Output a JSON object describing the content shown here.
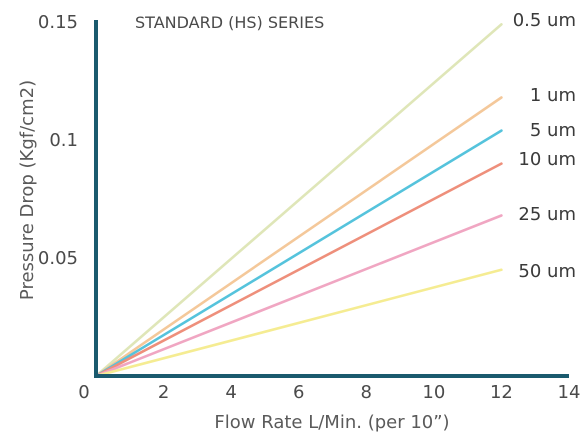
{
  "chart_data": {
    "type": "line",
    "title": "STANDARD (HS) SERIES",
    "xlabel": "Flow Rate L/Min. (per 10”)",
    "ylabel": "Pressure Drop (Kgf/cm2)",
    "xlim": [
      0,
      14
    ],
    "ylim": [
      0,
      0.15
    ],
    "x_ticks": [
      "0",
      "2",
      "4",
      "6",
      "8",
      "10",
      "12",
      "14"
    ],
    "y_ticks": [
      "0.05",
      "0.1",
      "0.15"
    ],
    "grid": false,
    "axis_color": "#1a5a6e",
    "series": [
      {
        "name": "0.5 um",
        "color": "#dfe6b8",
        "x": [
          0,
          12
        ],
        "y": [
          0,
          0.149
        ]
      },
      {
        "name": "1 um",
        "color": "#f4c89a",
        "x": [
          0,
          12
        ],
        "y": [
          0,
          0.118
        ]
      },
      {
        "name": "5 um",
        "color": "#55c3dc",
        "x": [
          0,
          12
        ],
        "y": [
          0,
          0.104
        ]
      },
      {
        "name": "10 um",
        "color": "#ee8f7b",
        "x": [
          0,
          12
        ],
        "y": [
          0,
          0.09
        ]
      },
      {
        "name": "25 um",
        "color": "#f0a6c2",
        "x": [
          0,
          12
        ],
        "y": [
          0,
          0.068
        ]
      },
      {
        "name": "50 um",
        "color": "#f5ec92",
        "x": [
          0,
          12
        ],
        "y": [
          0,
          0.045
        ]
      }
    ]
  }
}
